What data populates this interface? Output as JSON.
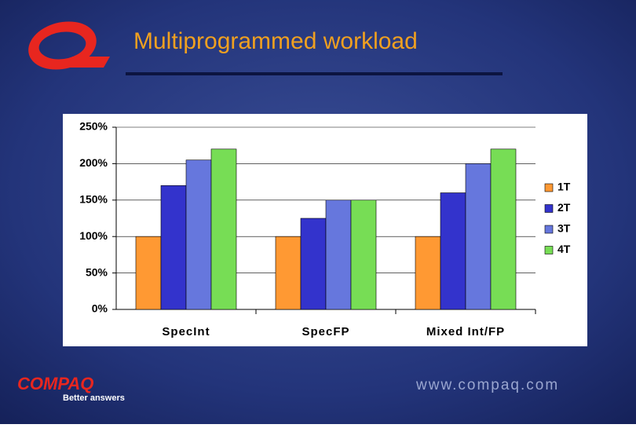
{
  "slide": {
    "brand": "COMPAQ",
    "tagline": "Better answers",
    "url": "www.compaq.com"
  },
  "chart_data": {
    "type": "bar",
    "title": "Multiprogrammed workload",
    "categories": [
      "SpecInt",
      "SpecFP",
      "Mixed Int/FP"
    ],
    "series": [
      {
        "name": "1T",
        "color": "#ff9933",
        "values": [
          100,
          100,
          100
        ]
      },
      {
        "name": "2T",
        "color": "#3333cc",
        "values": [
          170,
          125,
          160
        ]
      },
      {
        "name": "3T",
        "color": "#6677dd",
        "values": [
          205,
          150,
          200
        ]
      },
      {
        "name": "4T",
        "color": "#77dd55",
        "values": [
          220,
          150,
          220
        ]
      }
    ],
    "ylim": [
      0,
      250
    ],
    "yticks": [
      {
        "value": 0,
        "label": "0%"
      },
      {
        "value": 50,
        "label": "50%"
      },
      {
        "value": 100,
        "label": "100%"
      },
      {
        "value": 150,
        "label": "150%"
      },
      {
        "value": 200,
        "label": "200%"
      },
      {
        "value": 250,
        "label": "250%"
      }
    ],
    "grid": true,
    "legend": "right"
  }
}
